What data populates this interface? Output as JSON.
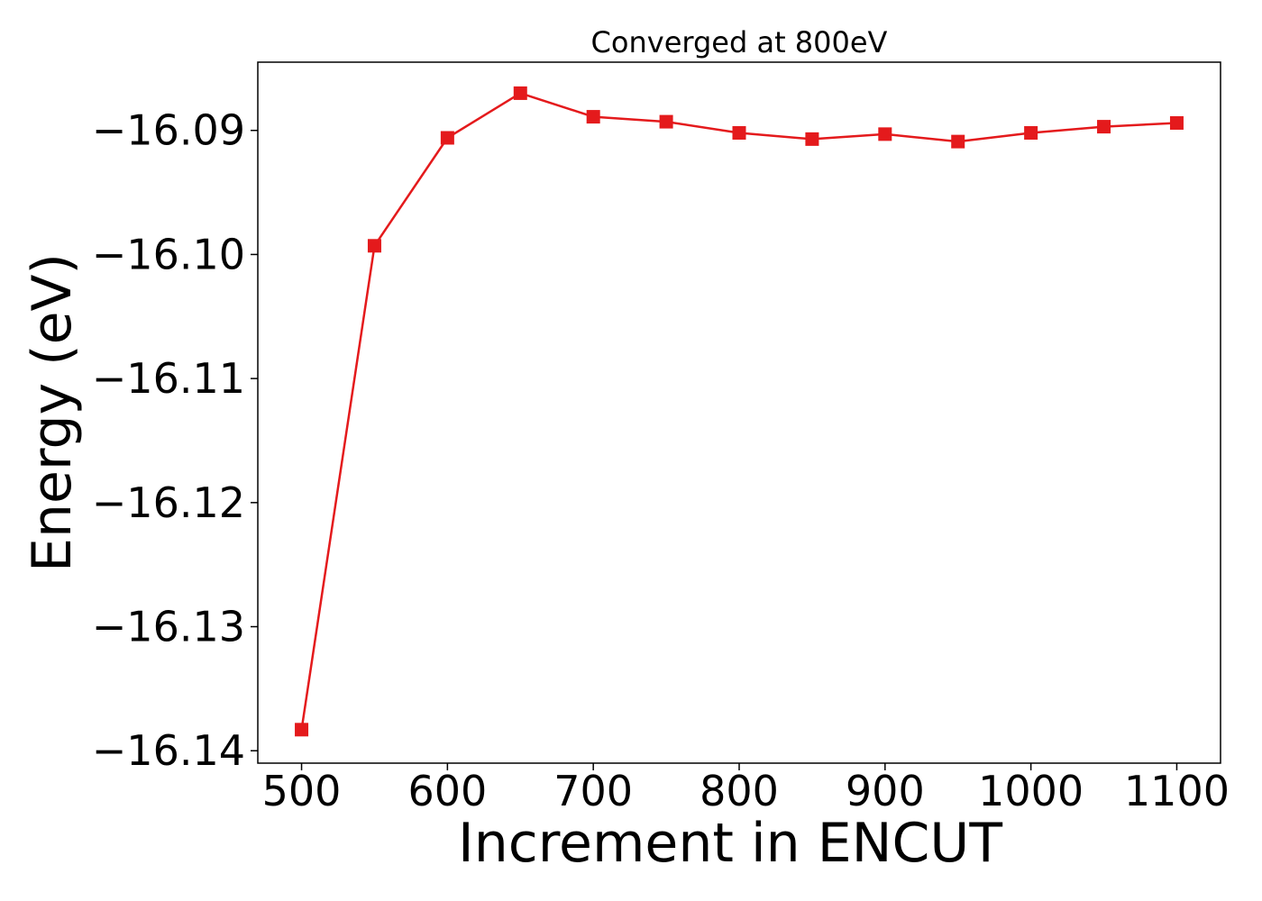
{
  "chart_data": {
    "type": "line",
    "title": "Converged at 800eV",
    "xlabel": "Increment in ENCUT",
    "ylabel": "Energy (eV)",
    "x": [
      500,
      550,
      600,
      650,
      700,
      750,
      800,
      850,
      900,
      950,
      1000,
      1050,
      1100
    ],
    "series": [
      {
        "values": [
          -16.1383,
          -16.0993,
          -16.0906,
          -16.087,
          -16.0889,
          -16.0893,
          -16.0902,
          -16.0907,
          -16.0903,
          -16.0909,
          -16.0902,
          -16.0897,
          -16.0894
        ],
        "color": "#e41a1c",
        "marker": "square"
      }
    ],
    "xlim": [
      470,
      1130
    ],
    "ylim": [
      -16.141,
      -16.0845
    ],
    "xticks": [
      500,
      600,
      700,
      800,
      900,
      1000,
      1100
    ],
    "xtick_labels": [
      "500",
      "600",
      "700",
      "800",
      "900",
      "1000",
      "1100"
    ],
    "yticks": [
      -16.14,
      -16.13,
      -16.12,
      -16.11,
      -16.1,
      -16.09
    ],
    "ytick_labels": [
      "−16.14",
      "−16.13",
      "−16.12",
      "−16.11",
      "−16.10",
      "−16.09"
    ],
    "grid": false,
    "legend": "none"
  }
}
